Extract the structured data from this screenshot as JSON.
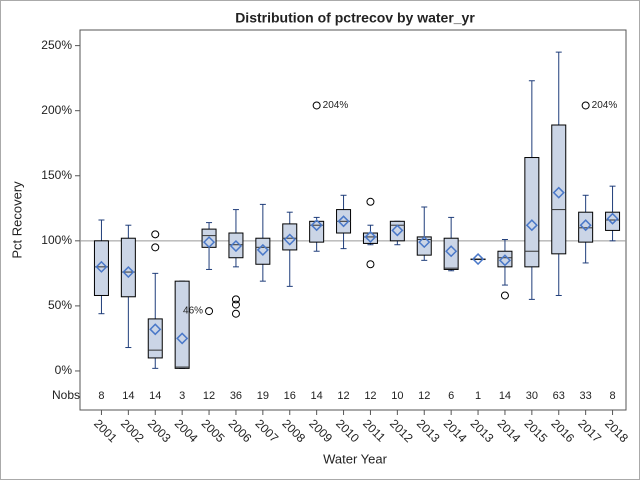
{
  "chart_data": {
    "type": "box",
    "title": "Distribution of pctrecov by water_yr",
    "x_label": "Water Year",
    "y_label": "Pct Recovery",
    "categories": [
      "2001",
      "2002",
      "2003",
      "2004",
      "2005",
      "2006",
      "2007",
      "2008",
      "2009",
      "2010",
      "2011",
      "2012",
      "2013",
      "2014",
      "2013",
      "2014",
      "2015",
      "2016",
      "2017",
      "2018"
    ],
    "boxes": [
      {
        "min": 44,
        "q1": 58,
        "median": 80,
        "q3": 100,
        "max": 116,
        "mean": 80,
        "outliers": []
      },
      {
        "min": 18,
        "q1": 57,
        "median": 76,
        "q3": 102,
        "max": 112,
        "mean": 76,
        "outliers": []
      },
      {
        "min": 2,
        "q1": 10,
        "median": 16,
        "q3": 40,
        "max": 75,
        "mean": 32,
        "outliers": [
          105,
          95
        ]
      },
      {
        "min": 2,
        "q1": 2,
        "median": 3,
        "q3": 69,
        "max": 69,
        "mean": 25,
        "outliers": []
      },
      {
        "min": 78,
        "q1": 95,
        "median": 104,
        "q3": 109,
        "max": 114,
        "mean": 99,
        "outliers": [
          {
            "value": 46,
            "label": "46%"
          }
        ]
      },
      {
        "min": 80,
        "q1": 87,
        "median": 97,
        "q3": 106,
        "max": 124,
        "mean": 96,
        "outliers": [
          55,
          51,
          44
        ]
      },
      {
        "min": 69,
        "q1": 82,
        "median": 95,
        "q3": 102,
        "max": 128,
        "mean": 93,
        "outliers": []
      },
      {
        "min": 65,
        "q1": 93,
        "median": 102,
        "q3": 113,
        "max": 122,
        "mean": 101,
        "outliers": []
      },
      {
        "min": 92,
        "q1": 99,
        "median": 112,
        "q3": 115,
        "max": 118,
        "mean": 112,
        "outliers": [
          {
            "value": 204,
            "label": "204%"
          }
        ]
      },
      {
        "min": 94,
        "q1": 106,
        "median": 115,
        "q3": 124,
        "max": 135,
        "mean": 115,
        "outliers": []
      },
      {
        "min": 97,
        "q1": 98,
        "median": 103,
        "q3": 106,
        "max": 112,
        "mean": 103,
        "outliers": [
          130,
          82
        ]
      },
      {
        "min": 97,
        "q1": 100,
        "median": 112,
        "q3": 115,
        "max": 115,
        "mean": 108,
        "outliers": []
      },
      {
        "min": 85,
        "q1": 89,
        "median": 101,
        "q3": 103,
        "max": 126,
        "mean": 99,
        "outliers": []
      },
      {
        "min": 77,
        "q1": 78,
        "median": 79,
        "q3": 102,
        "max": 118,
        "mean": 92,
        "outliers": []
      },
      {
        "min": 86,
        "q1": 86,
        "median": 86,
        "q3": 86,
        "max": 86,
        "mean": 86,
        "outliers": []
      },
      {
        "min": 66,
        "q1": 80,
        "median": 87,
        "q3": 92,
        "max": 101,
        "mean": 85,
        "outliers": [
          58
        ]
      },
      {
        "min": 55,
        "q1": 80,
        "median": 92,
        "q3": 164,
        "max": 223,
        "mean": 112,
        "outliers": []
      },
      {
        "min": 58,
        "q1": 90,
        "median": 124,
        "q3": 189,
        "max": 245,
        "mean": 137,
        "outliers": []
      },
      {
        "min": 83,
        "q1": 99,
        "median": 110,
        "q3": 122,
        "max": 135,
        "mean": 112,
        "outliers": [
          {
            "value": 204,
            "label": "204%"
          }
        ]
      },
      {
        "min": 100,
        "q1": 108,
        "median": 116,
        "q3": 122,
        "max": 142,
        "mean": 117,
        "outliers": []
      }
    ],
    "nobs_label": "Nobs",
    "nobs": [
      8,
      14,
      14,
      3,
      12,
      36,
      19,
      16,
      14,
      12,
      12,
      10,
      12,
      6,
      1,
      14,
      30,
      63,
      33,
      8
    ],
    "ylim": [
      -30,
      262
    ],
    "yticks": [
      {
        "value": 0,
        "label": "0%"
      },
      {
        "value": 50,
        "label": "50%"
      },
      {
        "value": 100,
        "label": "100%"
      },
      {
        "value": 150,
        "label": "150%"
      },
      {
        "value": 200,
        "label": "200%"
      },
      {
        "value": 250,
        "label": "250%"
      }
    ],
    "refline": 100,
    "box_color": "#cbd5e6",
    "whisker_color": "#1f3d7a",
    "mean_color": "#4a78c8"
  }
}
